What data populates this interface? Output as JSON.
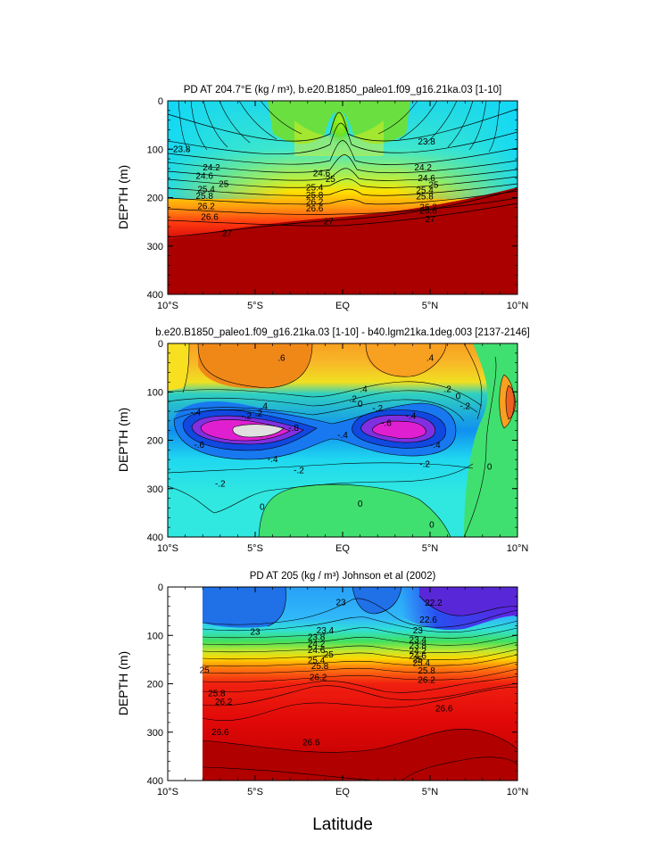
{
  "figure": {
    "xlabel_common": "Latitude"
  },
  "chart_data": [
    {
      "type": "heatmap",
      "title": "PD AT 204.7°E (kg / m³), b.e20.B1850_paleo1.f09_g16.21ka.03 [1-10]",
      "xlabel": "",
      "ylabel": "DEPTH (m)",
      "x_ticks": [
        "10°S",
        "5°S",
        "EQ",
        "5°N",
        "10°N"
      ],
      "y_ticks": [
        "0",
        "100",
        "200",
        "300",
        "400"
      ],
      "x_range_deg": [
        -10,
        10
      ],
      "y_range_m": [
        0,
        400
      ],
      "y_inverted": true,
      "levels": [
        22.2,
        22.6,
        23,
        23.4,
        23.8,
        24.2,
        24.6,
        25,
        25.4,
        25.8,
        26.2,
        26.6,
        27
      ],
      "contour_labels": [
        {
          "text": "23.8",
          "lat": -9.2,
          "depth": 100
        },
        {
          "text": "24.2",
          "lat": -7.5,
          "depth": 138
        },
        {
          "text": "24.6",
          "lat": -7.9,
          "depth": 156
        },
        {
          "text": "25",
          "lat": -6.8,
          "depth": 172
        },
        {
          "text": "25.4",
          "lat": -7.8,
          "depth": 183
        },
        {
          "text": "25.8",
          "lat": -7.9,
          "depth": 197
        },
        {
          "text": "26.2",
          "lat": -7.8,
          "depth": 218
        },
        {
          "text": "26.6",
          "lat": -7.6,
          "depth": 241
        },
        {
          "text": "27",
          "lat": -6.6,
          "depth": 274
        },
        {
          "text": "24.6",
          "lat": -1.2,
          "depth": 150
        },
        {
          "text": "25",
          "lat": -0.7,
          "depth": 162
        },
        {
          "text": "25.4",
          "lat": -1.6,
          "depth": 180
        },
        {
          "text": "25.8",
          "lat": -1.6,
          "depth": 195
        },
        {
          "text": "26.2",
          "lat": -1.6,
          "depth": 209
        },
        {
          "text": "26.6",
          "lat": -1.6,
          "depth": 223
        },
        {
          "text": "27",
          "lat": -0.8,
          "depth": 250
        },
        {
          "text": "23.8",
          "lat": 4.8,
          "depth": 85
        },
        {
          "text": "24.2",
          "lat": 4.6,
          "depth": 138
        },
        {
          "text": "24.6",
          "lat": 4.8,
          "depth": 160
        },
        {
          "text": "25",
          "lat": 5.2,
          "depth": 174
        },
        {
          "text": "25.4",
          "lat": 4.7,
          "depth": 185
        },
        {
          "text": "25.8",
          "lat": 4.7,
          "depth": 198
        },
        {
          "text": "26.2",
          "lat": 4.9,
          "depth": 220
        },
        {
          "text": "26.6",
          "lat": 4.9,
          "depth": 228
        },
        {
          "text": "27",
          "lat": 5.0,
          "depth": 245
        }
      ]
    },
    {
      "type": "heatmap",
      "title": "b.e20.B1850_paleo1.f09_g16.21ka.03 [1-10] - b40.lgm21ka.1deg.003 [2137-2146]",
      "xlabel": "",
      "ylabel": "DEPTH (m)",
      "x_ticks": [
        "10°S",
        "5°S",
        "EQ",
        "5°N",
        "10°N"
      ],
      "y_ticks": [
        "0",
        "100",
        "200",
        "300",
        "400"
      ],
      "x_range_deg": [
        -10,
        10
      ],
      "y_range_m": [
        0,
        400
      ],
      "y_inverted": true,
      "contour_labels": [
        {
          "text": ".6",
          "lat": -3.5,
          "depth": 30
        },
        {
          "text": ".4",
          "lat": 5.0,
          "depth": 30
        },
        {
          "text": ".4",
          "lat": -4.5,
          "depth": 130
        },
        {
          "text": ".4",
          "lat": 1.2,
          "depth": 95
        },
        {
          "text": ".2",
          "lat": -4.8,
          "depth": 145
        },
        {
          "text": ".2",
          "lat": 0.6,
          "depth": 115
        },
        {
          "text": ".2",
          "lat": 6.0,
          "depth": 95
        },
        {
          "text": "0",
          "lat": 6.6,
          "depth": 110
        },
        {
          "text": "-.2",
          "lat": 7.0,
          "depth": 130
        },
        {
          "text": "-.4",
          "lat": -8.4,
          "depth": 143
        },
        {
          "text": "-.2",
          "lat": -5.5,
          "depth": 150
        },
        {
          "text": "0",
          "lat": 1.0,
          "depth": 125
        },
        {
          "text": "-.2",
          "lat": 2.0,
          "depth": 135
        },
        {
          "text": "-.4",
          "lat": 3.9,
          "depth": 150
        },
        {
          "text": "-.8",
          "lat": -2.8,
          "depth": 175
        },
        {
          "text": "-.6",
          "lat": -8.2,
          "depth": 210
        },
        {
          "text": "-.4",
          "lat": 0.0,
          "depth": 190
        },
        {
          "text": "-.6",
          "lat": 2.5,
          "depth": 165
        },
        {
          "text": "-.4",
          "lat": 5.3,
          "depth": 210
        },
        {
          "text": "-.4",
          "lat": -4.0,
          "depth": 240
        },
        {
          "text": "-.2",
          "lat": -2.5,
          "depth": 263
        },
        {
          "text": "-.2",
          "lat": 4.7,
          "depth": 250
        },
        {
          "text": "-.2",
          "lat": -7.0,
          "depth": 290
        },
        {
          "text": "0",
          "lat": -4.6,
          "depth": 338
        },
        {
          "text": "0",
          "lat": 1.0,
          "depth": 332
        },
        {
          "text": "0",
          "lat": 8.4,
          "depth": 255
        },
        {
          "text": "0",
          "lat": 5.1,
          "depth": 375
        }
      ]
    },
    {
      "type": "heatmap",
      "title": "PD AT 205 (kg / m³) Johnson et al (2002)",
      "xlabel": "Latitude",
      "ylabel": "DEPTH (m)",
      "x_ticks": [
        "10°S",
        "5°S",
        "EQ",
        "5°N",
        "10°N"
      ],
      "y_ticks": [
        "0",
        "100",
        "200",
        "300",
        "400"
      ],
      "x_range_deg": [
        -10,
        10
      ],
      "y_range_m": [
        0,
        400
      ],
      "y_inverted": true,
      "no_data_west_of_deg": -8,
      "levels": [
        22.2,
        22.6,
        23,
        23.4,
        23.8,
        24.2,
        24.6,
        25,
        25.4,
        25.8,
        26.2,
        26.6
      ],
      "contour_labels": [
        {
          "text": "22.2",
          "lat": 5.2,
          "depth": 33
        },
        {
          "text": "22.6",
          "lat": 4.9,
          "depth": 68
        },
        {
          "text": "23",
          "lat": 4.3,
          "depth": 90
        },
        {
          "text": "23.4",
          "lat": 4.3,
          "depth": 110
        },
        {
          "text": "23.8",
          "lat": 4.3,
          "depth": 122
        },
        {
          "text": "24.2",
          "lat": 4.3,
          "depth": 133
        },
        {
          "text": "24.6",
          "lat": 4.3,
          "depth": 143
        },
        {
          "text": "25",
          "lat": 4.3,
          "depth": 150
        },
        {
          "text": "25.4",
          "lat": 4.5,
          "depth": 158
        },
        {
          "text": "25.8",
          "lat": 4.8,
          "depth": 173
        },
        {
          "text": "26.2",
          "lat": 4.8,
          "depth": 193
        },
        {
          "text": "23",
          "lat": -5.0,
          "depth": 93
        },
        {
          "text": "25",
          "lat": -7.9,
          "depth": 172
        },
        {
          "text": "25.8",
          "lat": -7.2,
          "depth": 220
        },
        {
          "text": "26.2",
          "lat": -6.8,
          "depth": 238
        },
        {
          "text": "26.6",
          "lat": -7.0,
          "depth": 300
        },
        {
          "text": "23",
          "lat": -0.1,
          "depth": 32
        },
        {
          "text": "23.4",
          "lat": -1.0,
          "depth": 90
        },
        {
          "text": "23.8",
          "lat": -1.5,
          "depth": 104
        },
        {
          "text": "24.2",
          "lat": -1.5,
          "depth": 118
        },
        {
          "text": "24.6",
          "lat": -1.5,
          "depth": 131
        },
        {
          "text": "25",
          "lat": -0.8,
          "depth": 140
        },
        {
          "text": "25.4",
          "lat": -1.5,
          "depth": 152
        },
        {
          "text": "25.8",
          "lat": -1.3,
          "depth": 164
        },
        {
          "text": "26.2",
          "lat": -1.4,
          "depth": 187
        },
        {
          "text": "26.6",
          "lat": -1.8,
          "depth": 322
        },
        {
          "text": "26.6",
          "lat": 5.8,
          "depth": 252
        }
      ]
    }
  ]
}
